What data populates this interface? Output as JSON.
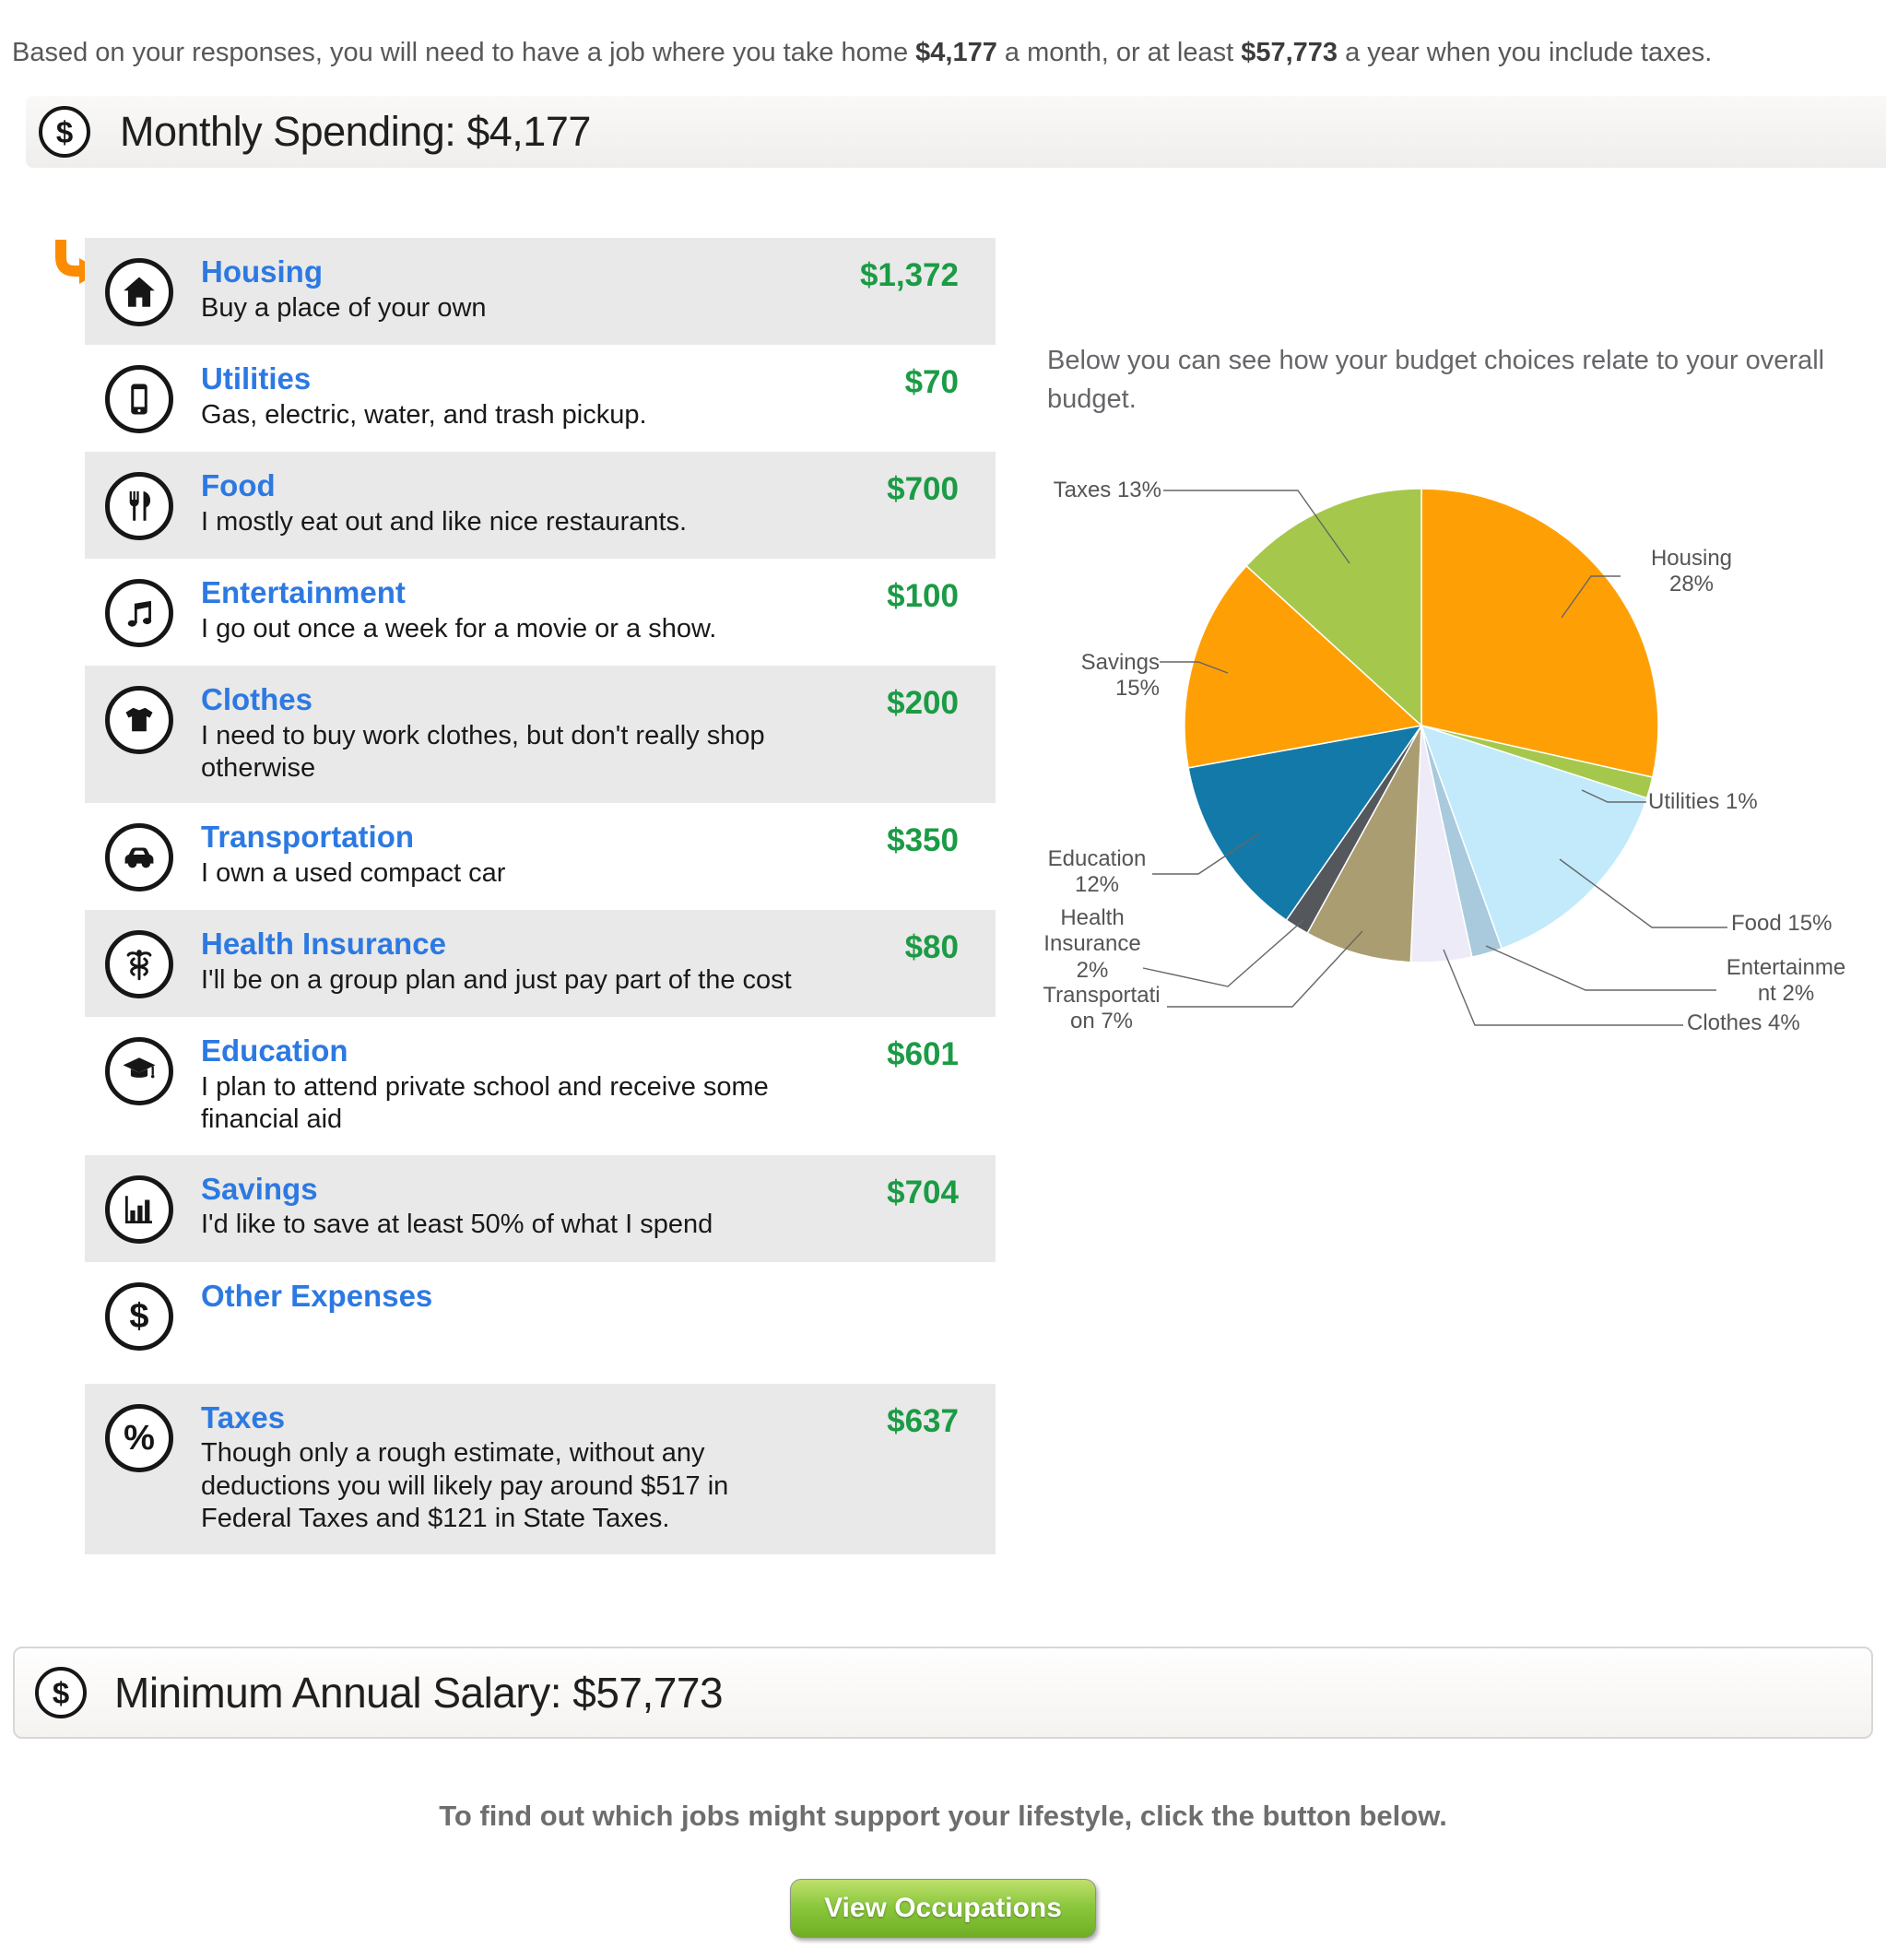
{
  "intro": {
    "part1": "Based on your responses, you will need to have a job where you take home ",
    "monthly_amount": "$4,177",
    "part2": " a month, or at least ",
    "annual_amount": "$57,773",
    "part3": " a year when you include taxes."
  },
  "monthly_header": {
    "title": "Monthly Spending: $4,177"
  },
  "spending": {
    "categories": [
      {
        "name": "Housing",
        "desc": "Buy a place of your own",
        "amount": "$1,372",
        "icon": "house"
      },
      {
        "name": "Utilities",
        "desc": "Gas, electric, water, and trash pickup.",
        "amount": "$70",
        "icon": "phone"
      },
      {
        "name": "Food",
        "desc": "I mostly eat out and like nice restaurants.",
        "amount": "$700",
        "icon": "utensils"
      },
      {
        "name": "Entertainment",
        "desc": "I go out once a week for a movie or a show.",
        "amount": "$100",
        "icon": "music"
      },
      {
        "name": "Clothes",
        "desc": "I need to buy work clothes, but don't really shop otherwise",
        "amount": "$200",
        "icon": "tshirt"
      },
      {
        "name": "Transportation",
        "desc": "I own a used compact car",
        "amount": "$350",
        "icon": "car"
      },
      {
        "name": "Health Insurance",
        "desc": "I'll be on a group plan and just pay part of the cost",
        "amount": "$80",
        "icon": "caduceus"
      },
      {
        "name": "Education",
        "desc": "I plan to attend private school and receive some financial aid",
        "amount": "$601",
        "icon": "gradcap"
      },
      {
        "name": "Savings",
        "desc": "I'd like to save at least 50% of what I spend",
        "amount": "$704",
        "icon": "barchart"
      },
      {
        "name": "Other Expenses",
        "desc": "",
        "amount": "",
        "icon": "dollar"
      },
      {
        "name": "Taxes",
        "desc": "Though only a rough estimate, without any deductions you will likely pay around $517 in Federal Taxes and $121 in State Taxes.",
        "amount": "$637",
        "icon": "percent"
      }
    ]
  },
  "chart": {
    "subtitle": "Below you can see how your budget choices relate to your overall budget."
  },
  "chart_data": {
    "type": "pie",
    "title": "Budget breakdown",
    "categories": [
      "Housing",
      "Utilities",
      "Food",
      "Entertainment",
      "Clothes",
      "Transportation",
      "Health Insurance",
      "Education",
      "Savings",
      "Taxes"
    ],
    "values": [
      1372,
      70,
      700,
      100,
      200,
      350,
      80,
      601,
      704,
      637
    ],
    "percent_labels": [
      "28%",
      "1%",
      "15%",
      "2%",
      "4%",
      "7%",
      "2%",
      "12%",
      "15%",
      "13%"
    ],
    "colors": [
      "#FEA005",
      "#A5C84C",
      "#C2EAFB",
      "#A8CADC",
      "#EDEBF8",
      "#AB9D72",
      "#54585D",
      "#1379A8",
      "#FEA005",
      "#A5C84C"
    ],
    "label_lines": [
      [
        "Housing",
        "28%"
      ],
      [
        "Utilities 1%"
      ],
      [
        "Food 15%"
      ],
      [
        "Entertainme",
        "nt 2%"
      ],
      [
        "Clothes 4%"
      ],
      [
        "Transportati",
        "on 7%"
      ],
      [
        "Health",
        "Insurance",
        "2%"
      ],
      [
        "Education",
        "12%"
      ],
      [
        "Savings 15%"
      ],
      [
        "Taxes 13%"
      ]
    ],
    "legend_position": "callout-labels",
    "grid": false
  },
  "salary_box": {
    "title": "Minimum Annual Salary: $57,773"
  },
  "footer": {
    "instruction": "To find out which jobs might support your lifestyle, click the button below.",
    "button_label": "View Occupations"
  },
  "colors": {
    "category_link": "#2d79e2",
    "amount_green": "#1b9b45",
    "arrow_orange": "#FB8C00",
    "button_green": "#7CB82F",
    "row_shade": "#e9e9e9",
    "callout_line": "#666666",
    "label_text": "#555555"
  }
}
